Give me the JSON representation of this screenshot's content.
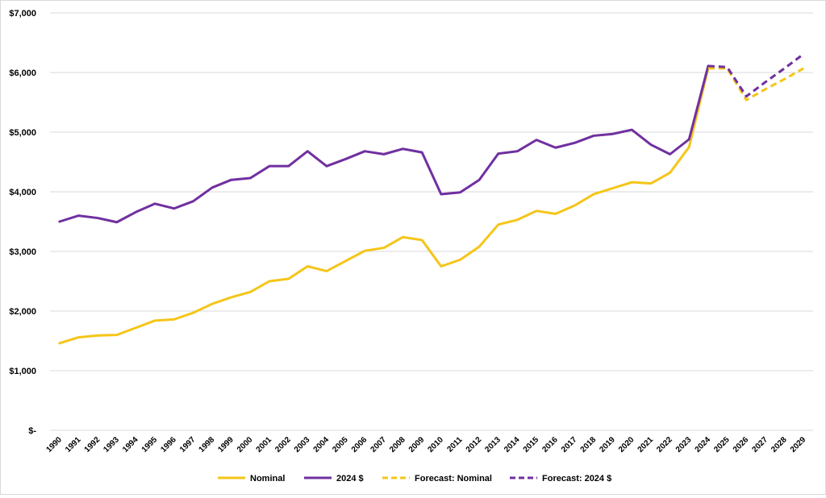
{
  "chart_data": {
    "type": "line",
    "categories": [
      "1990",
      "1991",
      "1992",
      "1993",
      "1994",
      "1995",
      "1996",
      "1997",
      "1998",
      "1999",
      "2000",
      "2001",
      "2002",
      "2003",
      "2004",
      "2005",
      "2006",
      "2007",
      "2008",
      "2009",
      "2010",
      "2011",
      "2012",
      "2013",
      "2014",
      "2015",
      "2016",
      "2017",
      "2018",
      "2019",
      "2020",
      "2021",
      "2022",
      "2023",
      "2024",
      "2025",
      "2026",
      "2027",
      "2028",
      "2029"
    ],
    "y_ticks": [
      0,
      1000,
      2000,
      3000,
      4000,
      5000,
      6000,
      7000
    ],
    "y_tick_labels": [
      "$-",
      "$1,000",
      "$2,000",
      "$3,000",
      "$4,000",
      "$5,000",
      "$6,000",
      "$7,000"
    ],
    "ylim": [
      0,
      7000
    ],
    "grid": "horizontal",
    "legend_position": "bottom",
    "series": [
      {
        "name": "Nominal",
        "color": "#F5C518",
        "style": "solid",
        "values": [
          1460,
          1560,
          1590,
          1600,
          1720,
          1840,
          1860,
          1970,
          2120,
          2230,
          2320,
          2500,
          2540,
          2750,
          2670,
          2840,
          3010,
          3060,
          3240,
          3190,
          2750,
          2860,
          3080,
          3450,
          3530,
          3680,
          3630,
          3770,
          3960,
          4060,
          4160,
          4140,
          4320,
          4750,
          6070,
          null,
          null,
          null,
          null,
          null
        ]
      },
      {
        "name": "2024 $",
        "color": "#7030A0",
        "style": "solid",
        "values": [
          3500,
          3600,
          3560,
          3490,
          3660,
          3800,
          3720,
          3840,
          4070,
          4200,
          4230,
          4430,
          4430,
          4680,
          4430,
          4550,
          4680,
          4630,
          4720,
          4660,
          3960,
          3990,
          4200,
          4640,
          4680,
          4870,
          4740,
          4820,
          4940,
          4970,
          5040,
          4790,
          4630,
          4880,
          6110,
          null,
          null,
          null,
          null,
          null
        ]
      },
      {
        "name": "Forecast: Nominal",
        "color": "#F5C518",
        "style": "dashed",
        "values": [
          null,
          null,
          null,
          null,
          null,
          null,
          null,
          null,
          null,
          null,
          null,
          null,
          null,
          null,
          null,
          null,
          null,
          null,
          null,
          null,
          null,
          null,
          null,
          null,
          null,
          null,
          null,
          null,
          null,
          null,
          null,
          null,
          null,
          null,
          6070,
          6070,
          5540,
          5720,
          5890,
          6070
        ]
      },
      {
        "name": "Forecast: 2024 $",
        "color": "#7030A0",
        "style": "dashed",
        "values": [
          null,
          null,
          null,
          null,
          null,
          null,
          null,
          null,
          null,
          null,
          null,
          null,
          null,
          null,
          null,
          null,
          null,
          null,
          null,
          null,
          null,
          null,
          null,
          null,
          null,
          null,
          null,
          null,
          null,
          null,
          null,
          null,
          null,
          null,
          6110,
          6090,
          5600,
          5840,
          6070,
          6310
        ]
      }
    ]
  }
}
